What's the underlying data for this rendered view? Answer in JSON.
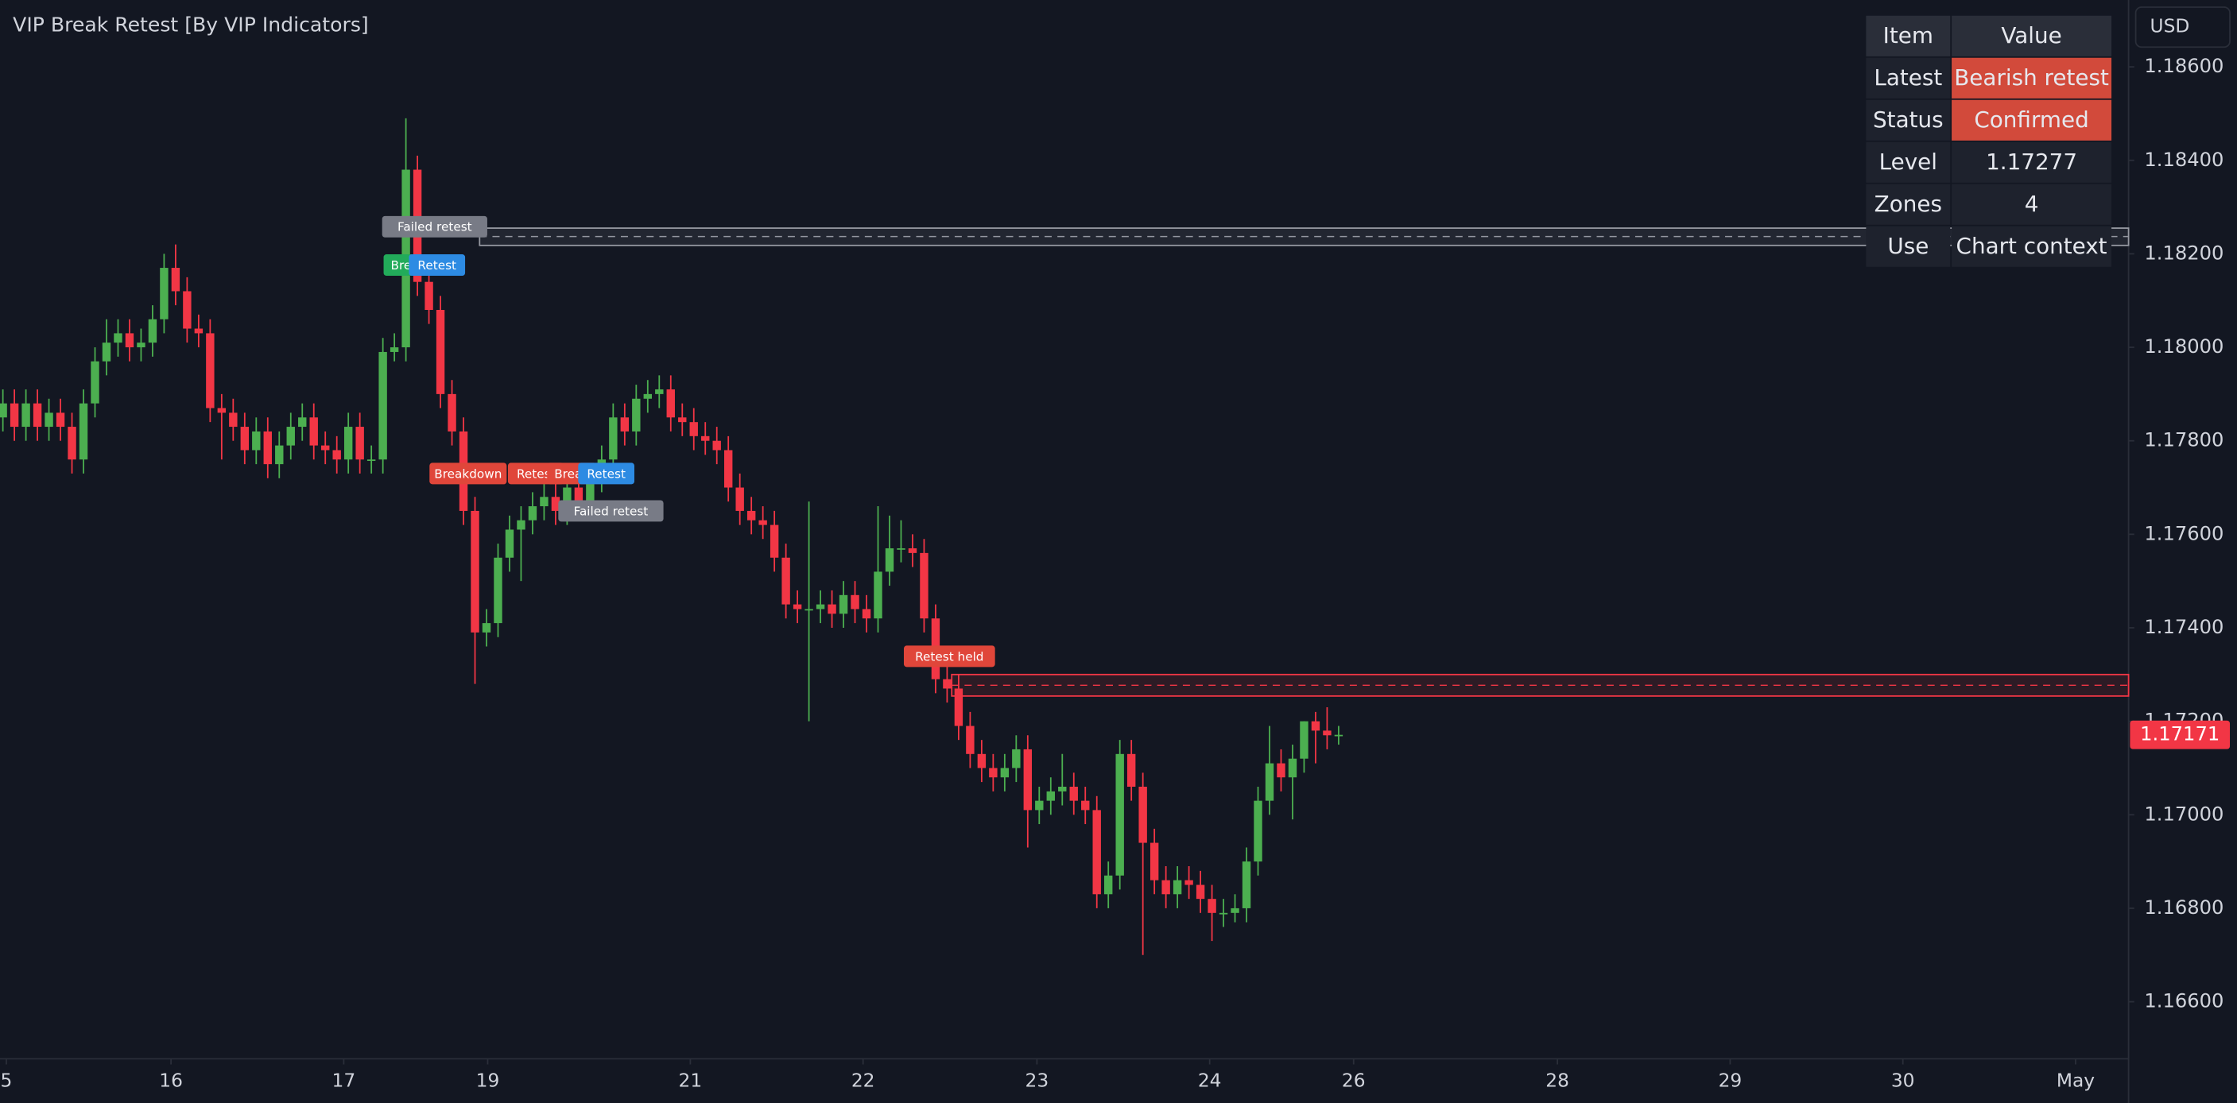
{
  "chart_data": {
    "type": "candlestick",
    "title": "VIP Break Retest [By VIP Indicators]",
    "currency": "USD",
    "open": [
      1.1785,
      1.1788,
      1.1783,
      1.1788,
      1.1783,
      1.1786,
      1.1783,
      1.1776,
      1.1788,
      1.1797,
      1.1801,
      1.1803,
      1.18,
      1.1801,
      1.1806,
      1.1817,
      1.1812,
      1.1804,
      1.1803,
      1.1787,
      1.1786,
      1.1783,
      1.1778,
      1.1782,
      1.1775,
      1.1779,
      1.1783,
      1.1785,
      1.1779,
      1.1778,
      1.1776,
      1.1783,
      1.1776,
      1.1776,
      1.1799,
      1.18,
      1.1838,
      1.1814,
      1.1808,
      1.179,
      1.1782,
      1.1765,
      1.1739,
      1.1741,
      1.1755,
      1.1761,
      1.1763,
      1.1766,
      1.1768,
      1.1765,
      1.177,
      1.1766,
      1.1772,
      1.1776,
      1.1785,
      1.1782,
      1.1789,
      1.179,
      1.1791,
      1.1785,
      1.1784,
      1.1781,
      1.178,
      1.1778,
      1.177,
      1.1765,
      1.1763,
      1.1762,
      1.1755,
      1.1745,
      1.1744,
      1.1744,
      1.1745,
      1.1743,
      1.1747,
      1.1744,
      1.1742,
      1.1752,
      1.1757,
      1.1757,
      1.1756,
      1.1742,
      1.1729,
      1.1727,
      1.1719,
      1.1713,
      1.171,
      1.1708,
      1.171,
      1.1714,
      1.1701,
      1.1703,
      1.1705,
      1.1706,
      1.1703,
      1.1701,
      1.1683,
      1.1687,
      1.1713,
      1.1706,
      1.1694,
      1.1686,
      1.1683,
      1.1686,
      1.1685,
      1.1682,
      1.1679,
      1.1679,
      1.168,
      1.169,
      1.1703,
      1.1711,
      1.1708,
      1.1712,
      1.172,
      1.1718,
      1.1717
    ],
    "high": [
      1.1791,
      1.1791,
      1.1791,
      1.1791,
      1.1789,
      1.1789,
      1.1786,
      1.1791,
      1.18,
      1.1806,
      1.1806,
      1.1806,
      1.1804,
      1.1809,
      1.182,
      1.1822,
      1.1815,
      1.1807,
      1.1806,
      1.179,
      1.1789,
      1.1786,
      1.1785,
      1.1785,
      1.1782,
      1.1786,
      1.1788,
      1.1788,
      1.1782,
      1.1781,
      1.1786,
      1.1786,
      1.1779,
      1.1802,
      1.1803,
      1.1849,
      1.1841,
      1.1817,
      1.1811,
      1.1793,
      1.1785,
      1.1768,
      1.1744,
      1.1758,
      1.1764,
      1.1766,
      1.1769,
      1.1771,
      1.1771,
      1.1773,
      1.1773,
      1.1775,
      1.1779,
      1.1788,
      1.1788,
      1.1792,
      1.1793,
      1.1794,
      1.1794,
      1.1788,
      1.1787,
      1.1784,
      1.1783,
      1.1781,
      1.1773,
      1.1768,
      1.1766,
      1.1765,
      1.1758,
      1.1748,
      1.1767,
      1.1748,
      1.1748,
      1.175,
      1.175,
      1.1747,
      1.1766,
      1.1764,
      1.1763,
      1.176,
      1.1759,
      1.1745,
      1.1732,
      1.173,
      1.1722,
      1.1716,
      1.1713,
      1.1713,
      1.1717,
      1.1717,
      1.1706,
      1.1708,
      1.1713,
      1.1709,
      1.1706,
      1.1704,
      1.169,
      1.1716,
      1.1716,
      1.1709,
      1.1697,
      1.1689,
      1.1689,
      1.1689,
      1.1688,
      1.1685,
      1.1682,
      1.1683,
      1.1693,
      1.1706,
      1.1719,
      1.1714,
      1.1715,
      1.172,
      1.1722,
      1.1723,
      1.1719
    ],
    "low": [
      1.1782,
      1.178,
      1.178,
      1.178,
      1.178,
      1.178,
      1.1773,
      1.1773,
      1.1785,
      1.1794,
      1.1798,
      1.1797,
      1.1797,
      1.1798,
      1.1803,
      1.1809,
      1.1801,
      1.18,
      1.1784,
      1.1776,
      1.178,
      1.1775,
      1.1775,
      1.1772,
      1.1772,
      1.1776,
      1.178,
      1.1776,
      1.1775,
      1.1773,
      1.1773,
      1.1773,
      1.1773,
      1.1773,
      1.1797,
      1.1797,
      1.1811,
      1.1805,
      1.1787,
      1.1779,
      1.1762,
      1.1728,
      1.1736,
      1.1738,
      1.1752,
      1.175,
      1.176,
      1.1763,
      1.1762,
      1.1762,
      1.1763,
      1.1763,
      1.1769,
      1.1773,
      1.1779,
      1.1779,
      1.1786,
      1.1787,
      1.1782,
      1.1781,
      1.1778,
      1.1777,
      1.1775,
      1.1767,
      1.1762,
      1.176,
      1.1759,
      1.1752,
      1.1742,
      1.1741,
      1.172,
      1.1741,
      1.174,
      1.174,
      1.1741,
      1.1739,
      1.1739,
      1.1749,
      1.1754,
      1.1753,
      1.1739,
      1.1726,
      1.1724,
      1.1716,
      1.171,
      1.1707,
      1.1705,
      1.1705,
      1.1707,
      1.1693,
      1.1698,
      1.17,
      1.1702,
      1.17,
      1.1698,
      1.168,
      1.168,
      1.1684,
      1.1703,
      1.167,
      1.1683,
      1.168,
      1.168,
      1.1682,
      1.1679,
      1.1673,
      1.1676,
      1.1677,
      1.1677,
      1.1687,
      1.17,
      1.1705,
      1.1699,
      1.1709,
      1.1711,
      1.1714,
      1.1715
    ],
    "close": [
      1.1788,
      1.1783,
      1.1788,
      1.1783,
      1.1786,
      1.1783,
      1.1776,
      1.1788,
      1.1797,
      1.1801,
      1.1803,
      1.18,
      1.1801,
      1.1806,
      1.1817,
      1.1812,
      1.1804,
      1.1803,
      1.1787,
      1.1786,
      1.1783,
      1.1778,
      1.1782,
      1.1775,
      1.1779,
      1.1783,
      1.1785,
      1.1779,
      1.1778,
      1.1776,
      1.1783,
      1.1776,
      1.1776,
      1.1799,
      1.18,
      1.1838,
      1.1814,
      1.1808,
      1.179,
      1.1782,
      1.1765,
      1.1739,
      1.1741,
      1.1755,
      1.1761,
      1.1763,
      1.1766,
      1.1768,
      1.1765,
      1.177,
      1.1766,
      1.1772,
      1.1776,
      1.1785,
      1.1782,
      1.1789,
      1.179,
      1.1791,
      1.1785,
      1.1784,
      1.1781,
      1.178,
      1.1778,
      1.177,
      1.1765,
      1.1763,
      1.1762,
      1.1755,
      1.1745,
      1.1744,
      1.1744,
      1.1745,
      1.1743,
      1.1747,
      1.1744,
      1.1742,
      1.1752,
      1.1757,
      1.1757,
      1.1756,
      1.1742,
      1.1729,
      1.1727,
      1.1719,
      1.1713,
      1.171,
      1.1708,
      1.171,
      1.1714,
      1.1701,
      1.1703,
      1.1705,
      1.1706,
      1.1703,
      1.1701,
      1.1683,
      1.1687,
      1.1713,
      1.1706,
      1.1694,
      1.1686,
      1.1683,
      1.1686,
      1.1685,
      1.1682,
      1.1679,
      1.1679,
      1.168,
      1.169,
      1.1703,
      1.1711,
      1.1708,
      1.1712,
      1.172,
      1.1718,
      1.1717,
      1.17171
    ],
    "up_color": "#4caf50",
    "down_color": "#f23645",
    "xlim": [
      -0.25,
      184.6
    ],
    "xticks": [
      {
        "value": 0.3,
        "label": "5"
      },
      {
        "value": 14.6,
        "label": "16"
      },
      {
        "value": 29.6,
        "label": "17"
      },
      {
        "value": 42.1,
        "label": "19"
      },
      {
        "value": 59.7,
        "label": "21"
      },
      {
        "value": 74.7,
        "label": "22"
      },
      {
        "value": 89.8,
        "label": "23"
      },
      {
        "value": 104.8,
        "label": "24"
      },
      {
        "value": 117.3,
        "label": "26"
      },
      {
        "value": 135,
        "label": "28"
      },
      {
        "value": 150,
        "label": "29"
      },
      {
        "value": 165,
        "label": "30"
      },
      {
        "value": 180,
        "label": "May"
      }
    ],
    "ylim": [
      1.16478,
      1.18743
    ],
    "yticks": [
      {
        "value": 1.166,
        "label": "1.16600"
      },
      {
        "value": 1.168,
        "label": "1.16800"
      },
      {
        "value": 1.17,
        "label": "1.17000"
      },
      {
        "value": 1.172,
        "label": "1.17200"
      },
      {
        "value": 1.174,
        "label": "1.17400"
      },
      {
        "value": 1.176,
        "label": "1.17600"
      },
      {
        "value": 1.178,
        "label": "1.17800"
      },
      {
        "value": 1.18,
        "label": "1.18000"
      },
      {
        "value": 1.182,
        "label": "1.18200"
      },
      {
        "value": 1.184,
        "label": "1.18400"
      },
      {
        "value": 1.186,
        "label": "1.18600"
      }
    ],
    "zones": [
      {
        "start": 41.4,
        "top": 1.18255,
        "bottom": 1.18218,
        "mid": 1.18237,
        "color": "#9598a1"
      },
      {
        "start": 82.4,
        "top": 1.173,
        "bottom": 1.17254,
        "mid": 1.17277,
        "color": "#f23645"
      }
    ],
    "annotations": [
      {
        "text": "Failed retest",
        "x": 37.5,
        "y": 1.18258,
        "color": "#787b86"
      },
      {
        "text": "Break",
        "x": 35.2,
        "y": 1.18176,
        "color": "#22ab5a"
      },
      {
        "text": "Retest",
        "x": 37.7,
        "y": 1.18176,
        "color": "#2d8be3"
      },
      {
        "text": "Breakdown",
        "x": 40.4,
        "y": 1.1773,
        "color": "#e0463a"
      },
      {
        "text": "Retest",
        "x": 46.3,
        "y": 1.1773,
        "color": "#e0463a"
      },
      {
        "text": "Break",
        "x": 49.4,
        "y": 1.1773,
        "color": "#e0463a"
      },
      {
        "text": "Retest",
        "x": 52.4,
        "y": 1.1773,
        "color": "#2d8be3"
      },
      {
        "text": "Failed retest",
        "x": 52.8,
        "y": 1.1765,
        "color": "#787b86"
      },
      {
        "text": "Retest held",
        "x": 82.2,
        "y": 1.17339,
        "color": "#e0463a"
      }
    ]
  },
  "table": {
    "header": [
      "Item",
      "Value"
    ],
    "rows": [
      [
        "Latest",
        "Bearish retest"
      ],
      [
        "Status",
        "Confirmed"
      ],
      [
        "Level",
        "1.17277"
      ],
      [
        "Zones",
        "4"
      ],
      [
        "Use",
        "Chart context"
      ]
    ],
    "highlight_color": "#d24a3b",
    "highlight_rows": [
      0,
      1
    ]
  }
}
